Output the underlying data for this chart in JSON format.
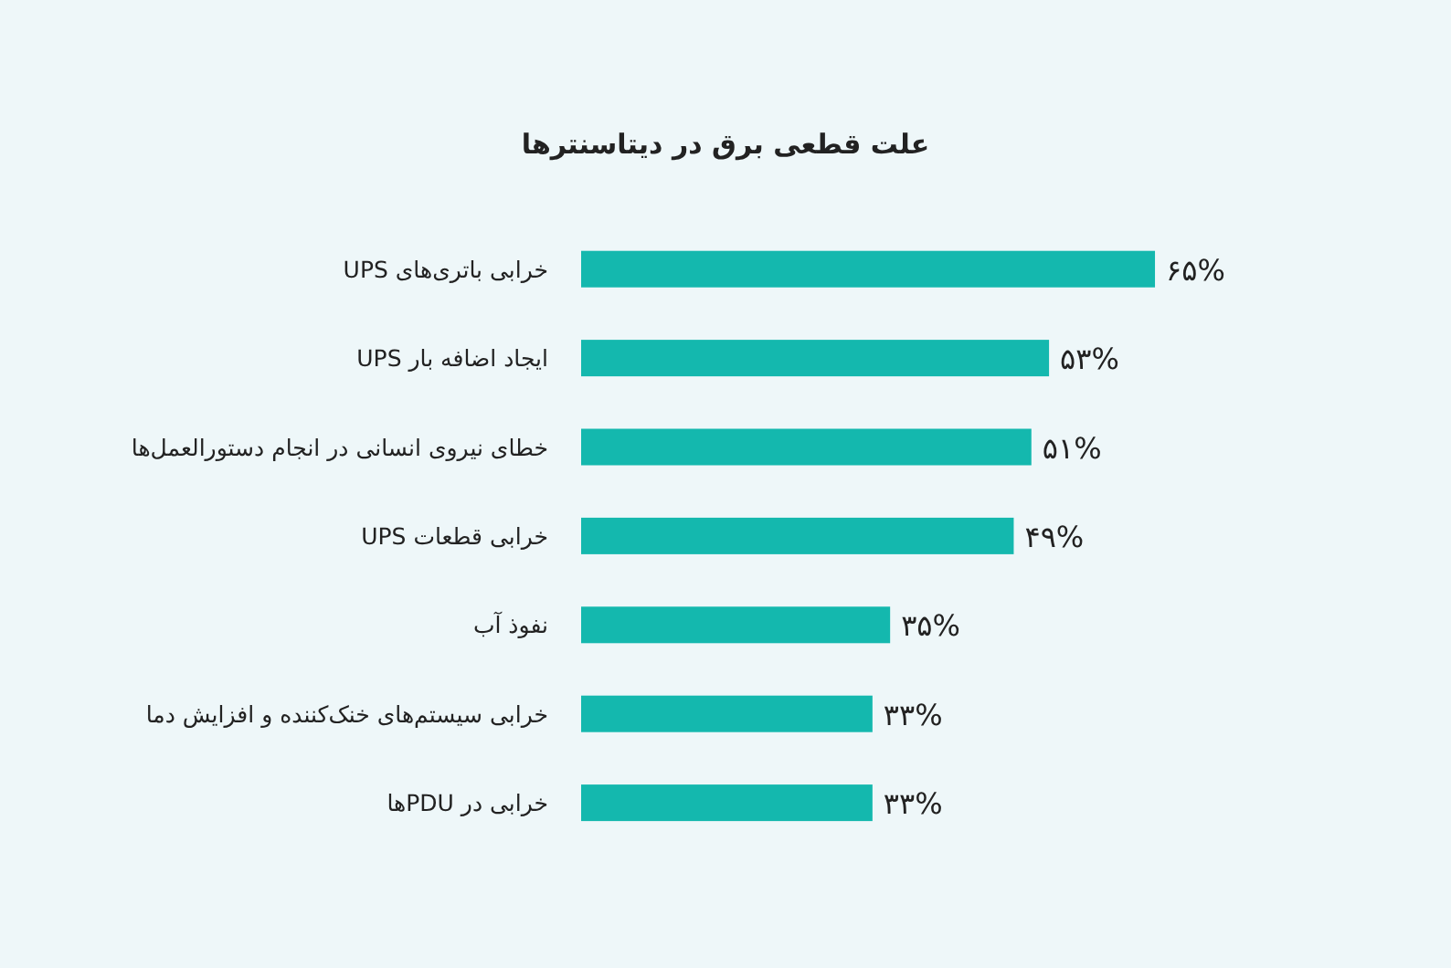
{
  "chart_data": {
    "type": "bar",
    "orientation": "horizontal",
    "title": "علت قطعی برق در دیتاسنترها",
    "categories": [
      "خرابی باتری‌های UPS",
      "ایجاد اضافه بار UPS",
      "خطای نیروی انسانی در انجام دستورالعمل‌ها",
      "خرابی قطعات UPS",
      "نفوذ آب",
      "خرابی سیستم‌های خنک‌کننده و افزایش دما",
      "خرابی در PDUها"
    ],
    "values": [
      65,
      53,
      51,
      49,
      35,
      33,
      33
    ],
    "color": "#14b8ae",
    "value_labels": [
      "۶۵%",
      "۵۳%",
      "۵۱%",
      "۴۹%",
      "۳۵%",
      "۳۳%",
      "۳۳%"
    ]
  }
}
